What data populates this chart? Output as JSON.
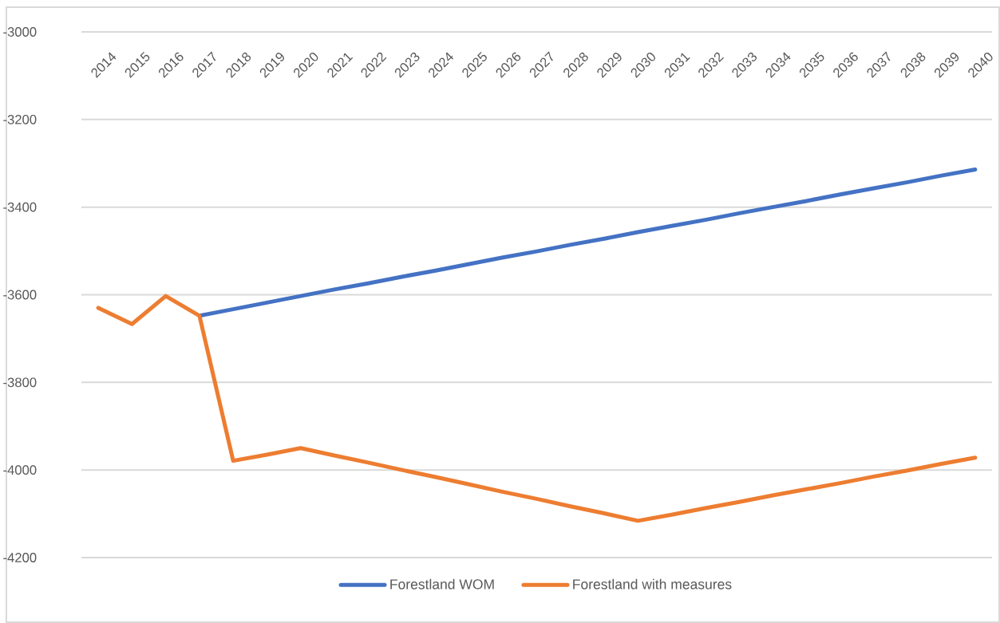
{
  "chart_data": {
    "type": "line",
    "categories": [
      "2014",
      "2015",
      "2016",
      "2017",
      "2018",
      "2019",
      "2020",
      "2021",
      "2022",
      "2023",
      "2024",
      "2025",
      "2026",
      "2027",
      "2028",
      "2029",
      "2030",
      "2031",
      "2032",
      "2033",
      "2034",
      "2035",
      "2036",
      "2037",
      "2038",
      "2039",
      "2040"
    ],
    "series": [
      {
        "name": "Forestland WOM",
        "color": "#4472c4",
        "values": [
          null,
          null,
          null,
          -3648,
          -3633,
          -3618,
          -3603,
          -3588,
          -3574,
          -3559,
          -3545,
          -3530,
          -3515,
          -3501,
          -3486,
          -3472,
          -3457,
          -3443,
          -3429,
          -3414,
          -3400,
          -3386,
          -3371,
          -3357,
          -3343,
          -3328,
          -3314
        ]
      },
      {
        "name": "Forestland with measures",
        "color": "#ed7d31",
        "values": [
          -3630,
          -3667,
          -3603,
          -3648,
          -3979,
          -3965,
          -3950,
          -3967,
          -3983,
          -4000,
          -4016,
          -4033,
          -4050,
          -4066,
          -4083,
          -4099,
          -4116,
          -4102,
          -4087,
          -4073,
          -4058,
          -4044,
          -4030,
          -4015,
          -4001,
          -3986,
          -3972
        ]
      }
    ],
    "ylim": [
      -4200,
      -3000
    ],
    "yticks": [
      -3000,
      -3200,
      -3400,
      -3600,
      -3800,
      -4000,
      -4200
    ],
    "grid": "y",
    "legend": "bottom",
    "marker": "none",
    "line_style": "solid"
  }
}
